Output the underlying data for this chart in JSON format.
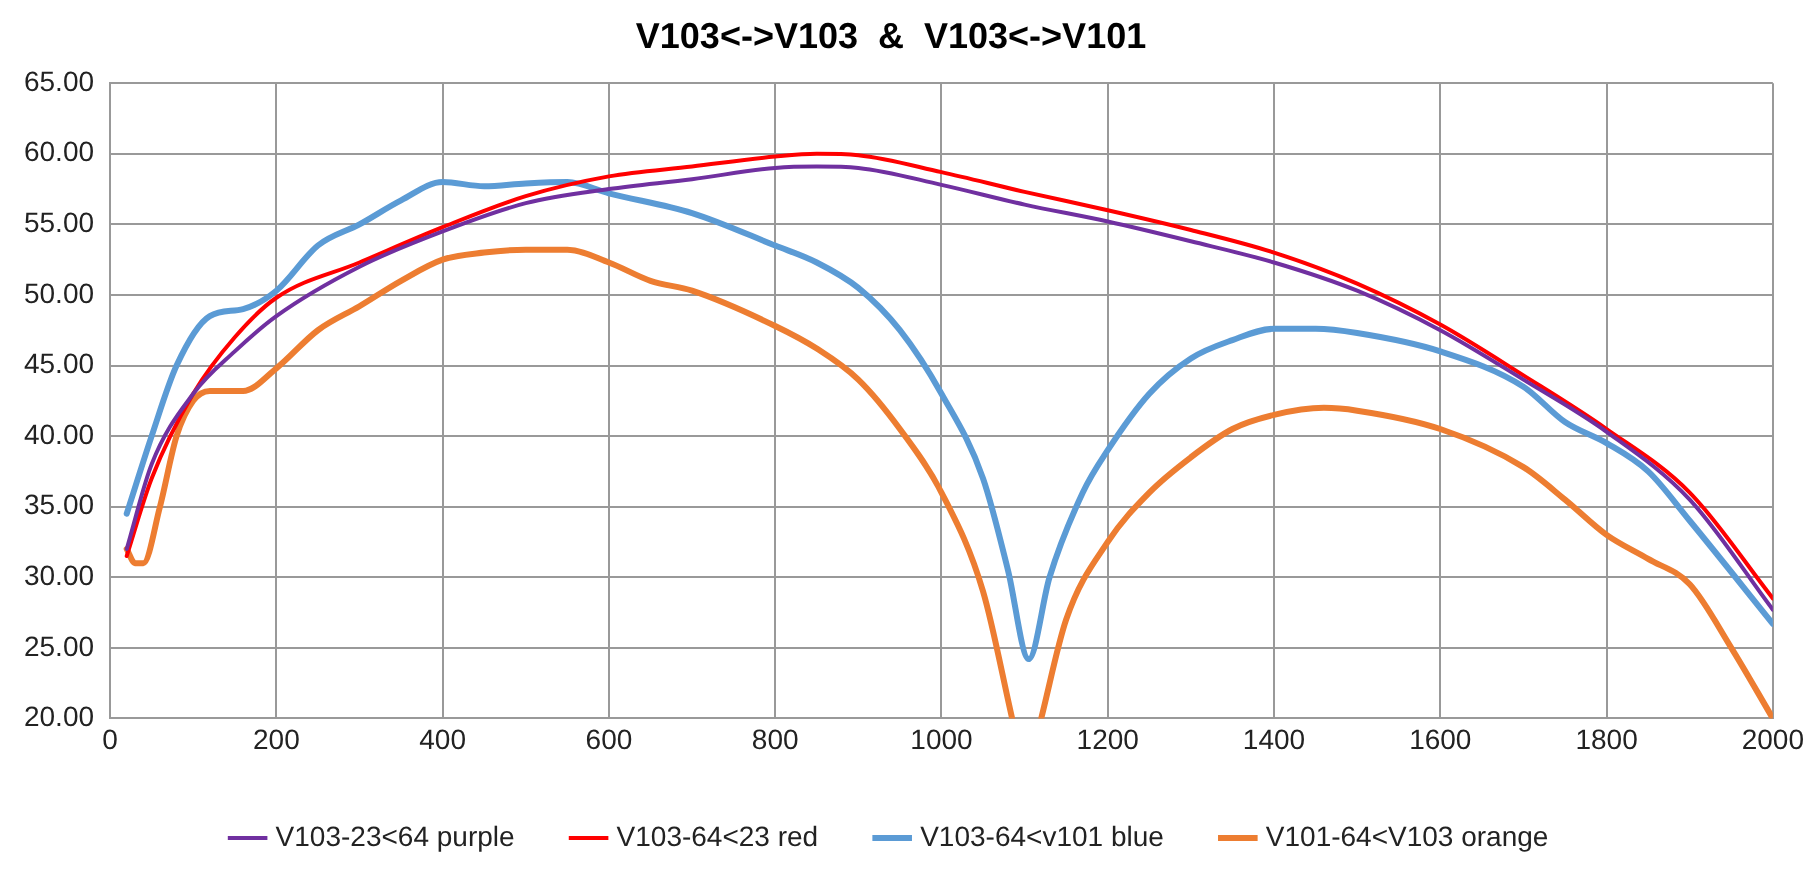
{
  "chart_data": {
    "type": "line",
    "title": "V103<->V103  &  V103<->V101",
    "xlim": [
      0,
      2000
    ],
    "xticks": [
      0,
      200,
      400,
      600,
      800,
      1000,
      1200,
      1400,
      1600,
      1800,
      2000
    ],
    "ylim": [
      20,
      65
    ],
    "yticks": [
      {
        "value": 20,
        "label": "20.00"
      },
      {
        "value": 25,
        "label": "25.00"
      },
      {
        "value": 30,
        "label": "30.00"
      },
      {
        "value": 35,
        "label": "35.00"
      },
      {
        "value": 40,
        "label": "40.00"
      },
      {
        "value": 45,
        "label": "45.00"
      },
      {
        "value": 50,
        "label": "50.00"
      },
      {
        "value": 55,
        "label": "55.00"
      },
      {
        "value": 60,
        "label": "60.00"
      },
      {
        "value": 65,
        "label": "65.00"
      }
    ],
    "grid": true,
    "legend": "bottom",
    "marker": "none",
    "line_style": "solid",
    "series": [
      {
        "name": "V103-23<64 purple",
        "color": "#7030a0",
        "x": [
          20,
          50,
          100,
          150,
          200,
          300,
          400,
          500,
          600,
          700,
          800,
          850,
          900,
          1000,
          1100,
          1200,
          1300,
          1400,
          1500,
          1600,
          1700,
          1800,
          1900,
          2000
        ],
        "values": [
          32,
          38,
          43,
          46,
          48.5,
          52,
          54.5,
          56.5,
          57.5,
          58.2,
          59,
          59.1,
          59,
          57.8,
          56.4,
          55.2,
          53.8,
          52.3,
          50.3,
          47.5,
          44,
          40.3,
          35.5,
          27.7
        ]
      },
      {
        "name": "V103-64<23 red",
        "color": "#ff0000",
        "x": [
          20,
          50,
          100,
          150,
          200,
          300,
          400,
          500,
          600,
          700,
          800,
          850,
          900,
          1000,
          1100,
          1200,
          1300,
          1400,
          1500,
          1600,
          1700,
          1800,
          1900,
          2000
        ],
        "values": [
          31.5,
          37,
          43,
          47,
          49.8,
          52.3,
          54.8,
          57,
          58.4,
          59.1,
          59.8,
          60,
          59.9,
          58.7,
          57.3,
          56,
          54.6,
          53,
          50.8,
          47.9,
          44.3,
          40.5,
          36,
          28.5
        ]
      },
      {
        "name": "V103-64<v101 blue",
        "color": "#5b9bd5",
        "x": [
          20,
          50,
          80,
          120,
          160,
          200,
          250,
          300,
          350,
          400,
          450,
          500,
          550,
          600,
          700,
          800,
          850,
          900,
          950,
          1000,
          1050,
          1080,
          1105,
          1130,
          1170,
          1200,
          1250,
          1300,
          1350,
          1400,
          1450,
          1500,
          1600,
          1700,
          1750,
          1800,
          1850,
          1900,
          2000
        ],
        "values": [
          34.5,
          40,
          45,
          48.5,
          49,
          50.3,
          53.5,
          55,
          56.7,
          58,
          57.7,
          57.9,
          58,
          57.2,
          55.8,
          53.5,
          52.3,
          50.5,
          47.5,
          43,
          37,
          30.5,
          24.2,
          30,
          36,
          39,
          43,
          45.5,
          46.8,
          47.6,
          47.6,
          47.3,
          46,
          43.5,
          41,
          39.5,
          37.5,
          34,
          26.7
        ]
      },
      {
        "name": "V101-64<V103 orange",
        "color": "#ed7d31",
        "x": [
          20,
          30,
          40,
          60,
          80,
          100,
          120,
          160,
          200,
          250,
          300,
          350,
          400,
          450,
          500,
          550,
          600,
          650,
          700,
          800,
          850,
          900,
          950,
          1000,
          1050,
          1085,
          1100,
          1120,
          1150,
          1200,
          1250,
          1300,
          1350,
          1400,
          1460,
          1500,
          1600,
          1700,
          1750,
          1800,
          1850,
          1900,
          1950,
          2000
        ],
        "values": [
          32,
          31,
          31,
          35,
          40,
          42.5,
          43.2,
          43.2,
          44.8,
          47.5,
          49.2,
          51,
          52.5,
          53,
          53.2,
          53.2,
          52.3,
          51,
          50.3,
          47.8,
          46.2,
          44,
          40.5,
          36,
          29,
          20,
          null,
          20,
          27,
          32.5,
          36,
          38.5,
          40.5,
          41.5,
          42,
          41.8,
          40.5,
          37.8,
          35.5,
          33,
          31.3,
          29.5,
          25,
          20
        ]
      }
    ]
  }
}
